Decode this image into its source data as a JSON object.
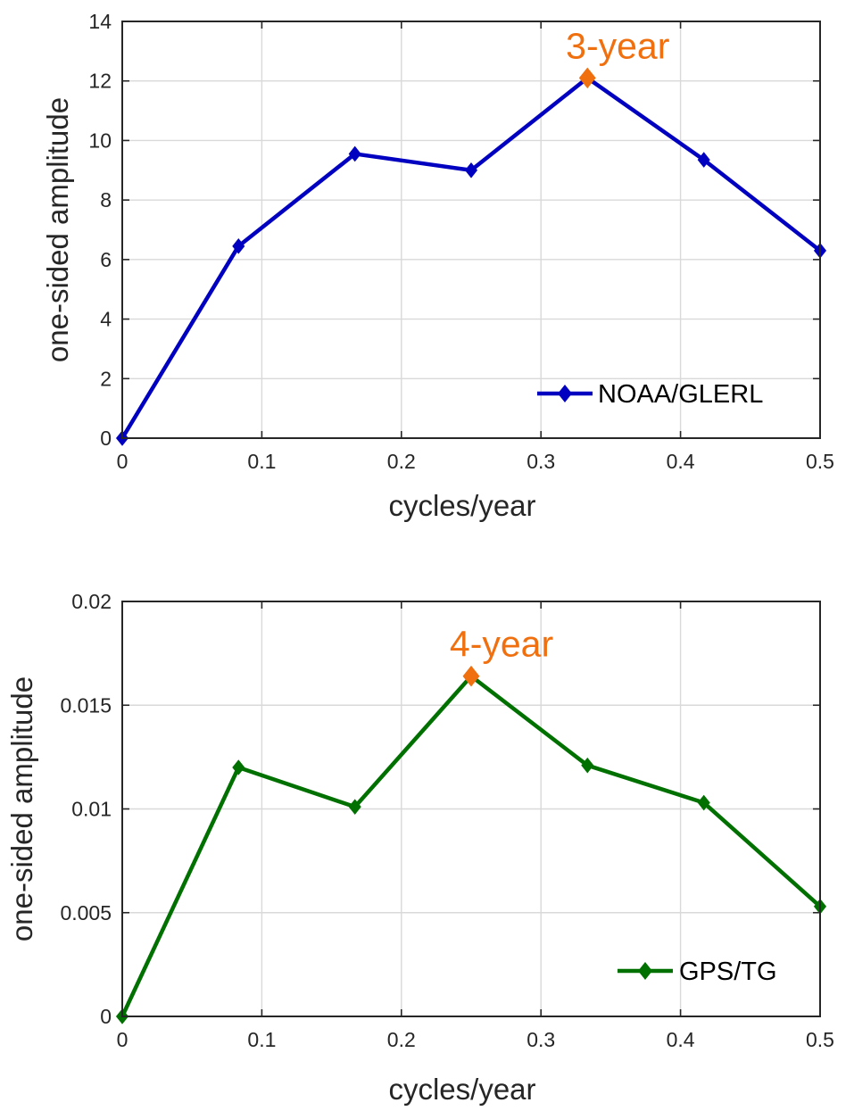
{
  "chart_data": [
    {
      "type": "line",
      "x": [
        0,
        0.0833,
        0.1667,
        0.25,
        0.3333,
        0.4167,
        0.5
      ],
      "series": [
        {
          "name": "NOAA/GLERL",
          "values": [
            0,
            6.45,
            9.55,
            9.0,
            12.1,
            9.35,
            6.3
          ],
          "color": "#0000c0",
          "marker": "diamond"
        }
      ],
      "xlabel": "cycles/year",
      "ylabel": "one-sided amplitude",
      "xlim": [
        0,
        0.5
      ],
      "ylim": [
        0,
        14
      ],
      "xticks": [
        0,
        0.1,
        0.2,
        0.3,
        0.4,
        0.5
      ],
      "xtick_labels": [
        "0",
        "0.1",
        "0.2",
        "0.3",
        "0.4",
        "0.5"
      ],
      "yticks": [
        0,
        2,
        4,
        6,
        8,
        10,
        12,
        14
      ],
      "ytick_labels": [
        "0",
        "2",
        "4",
        "6",
        "8",
        "10",
        "12",
        "14"
      ],
      "grid": true,
      "legend_position": "bottom-right",
      "annotation": {
        "text": "3-year",
        "x": 0.3333,
        "y": 12.1,
        "color": "#f07010"
      }
    },
    {
      "type": "line",
      "x": [
        0,
        0.0833,
        0.1667,
        0.25,
        0.3333,
        0.4167,
        0.5
      ],
      "series": [
        {
          "name": "GPS/TG",
          "values": [
            0,
            0.012,
            0.0101,
            0.0164,
            0.0121,
            0.0103,
            0.0053
          ],
          "color": "#007000",
          "marker": "diamond"
        }
      ],
      "xlabel": "cycles/year",
      "ylabel": "one-sided amplitude",
      "xlim": [
        0,
        0.5
      ],
      "ylim": [
        0,
        0.02
      ],
      "xticks": [
        0,
        0.1,
        0.2,
        0.3,
        0.4,
        0.5
      ],
      "xtick_labels": [
        "0",
        "0.1",
        "0.2",
        "0.3",
        "0.4",
        "0.5"
      ],
      "yticks": [
        0,
        0.005,
        0.01,
        0.015,
        0.02
      ],
      "ytick_labels": [
        "0",
        "0.005",
        "0.01",
        "0.015",
        "0.02"
      ],
      "grid": true,
      "legend_position": "bottom-right",
      "annotation": {
        "text": "4-year",
        "x": 0.25,
        "y": 0.0164,
        "color": "#f07010"
      }
    }
  ]
}
